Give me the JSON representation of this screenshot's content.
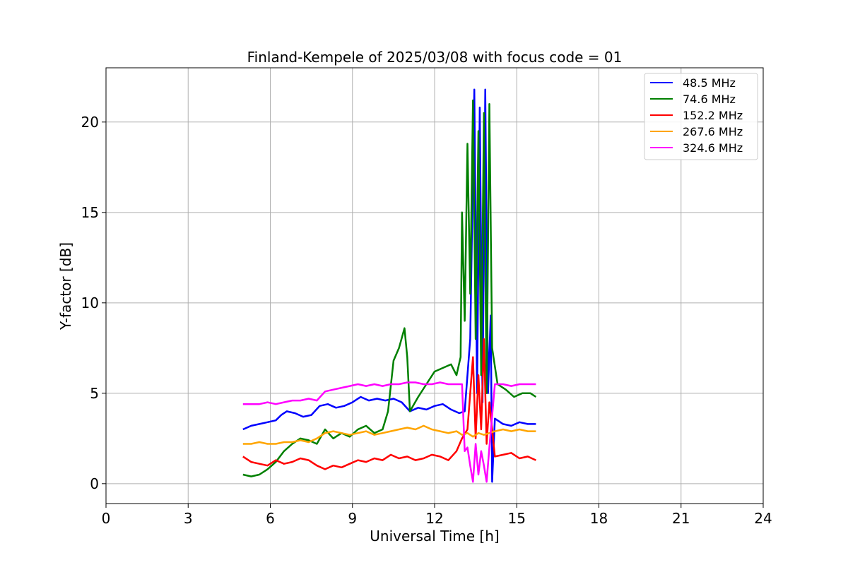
{
  "chart_data": {
    "type": "line",
    "title": "Finland-Kempele of 2025/03/08 with focus code = 01",
    "xlabel": "Universal Time [h]",
    "ylabel": "Y-factor [dB]",
    "xlim": [
      0,
      24
    ],
    "ylim": [
      -1.1,
      23
    ],
    "xticks": [
      0,
      3,
      6,
      9,
      12,
      15,
      18,
      21,
      24
    ],
    "yticks": [
      0,
      5,
      10,
      15,
      20
    ],
    "grid": true,
    "legend_position": "top-right",
    "series": [
      {
        "name": " 48.5 MHz",
        "color": "#0000ff",
        "x": [
          5.0,
          5.3,
          5.6,
          5.9,
          6.2,
          6.4,
          6.6,
          6.9,
          7.2,
          7.5,
          7.8,
          8.1,
          8.4,
          8.7,
          9.0,
          9.3,
          9.6,
          9.9,
          10.2,
          10.5,
          10.8,
          11.1,
          11.4,
          11.7,
          12.0,
          12.3,
          12.6,
          12.9,
          13.1,
          13.3,
          13.45,
          13.55,
          13.65,
          13.75,
          13.85,
          13.95,
          14.05,
          14.1,
          14.2,
          14.5,
          14.8,
          15.1,
          15.4,
          15.7
        ],
        "y": [
          3.0,
          3.2,
          3.3,
          3.4,
          3.5,
          3.8,
          4.0,
          3.9,
          3.7,
          3.8,
          4.3,
          4.4,
          4.2,
          4.3,
          4.5,
          4.8,
          4.6,
          4.7,
          4.6,
          4.7,
          4.5,
          4.0,
          4.2,
          4.1,
          4.3,
          4.4,
          4.1,
          3.9,
          4.0,
          8.0,
          21.8,
          5.0,
          20.8,
          4.5,
          21.8,
          5.0,
          9.3,
          0.1,
          3.6,
          3.3,
          3.2,
          3.4,
          3.3,
          3.3
        ]
      },
      {
        "name": " 74.6 MHz",
        "color": "#008000",
        "x": [
          5.0,
          5.3,
          5.6,
          5.9,
          6.2,
          6.5,
          6.8,
          7.1,
          7.4,
          7.7,
          8.0,
          8.3,
          8.6,
          8.9,
          9.2,
          9.5,
          9.8,
          10.1,
          10.3,
          10.5,
          10.7,
          10.9,
          11.0,
          11.1,
          11.4,
          11.7,
          12.0,
          12.3,
          12.6,
          12.8,
          12.95,
          13.0,
          13.1,
          13.2,
          13.3,
          13.4,
          13.5,
          13.6,
          13.7,
          13.8,
          13.9,
          14.0,
          14.1,
          14.3,
          14.6,
          14.9,
          15.2,
          15.5,
          15.7
        ],
        "y": [
          0.5,
          0.4,
          0.5,
          0.8,
          1.2,
          1.8,
          2.2,
          2.5,
          2.4,
          2.2,
          3.0,
          2.5,
          2.8,
          2.6,
          3.0,
          3.2,
          2.8,
          3.0,
          4.0,
          6.8,
          7.5,
          8.6,
          7.0,
          4.0,
          4.8,
          5.5,
          6.2,
          6.4,
          6.6,
          6.0,
          7.0,
          15.0,
          9.0,
          18.8,
          10.5,
          21.2,
          8.0,
          19.5,
          6.0,
          20.5,
          5.0,
          21.0,
          7.5,
          5.5,
          5.2,
          4.8,
          5.0,
          5.0,
          4.8
        ]
      },
      {
        "name": " 152.2 MHz",
        "color": "#ff0000",
        "x": [
          5.0,
          5.3,
          5.6,
          5.9,
          6.2,
          6.5,
          6.8,
          7.1,
          7.4,
          7.7,
          8.0,
          8.3,
          8.6,
          8.9,
          9.2,
          9.5,
          9.8,
          10.1,
          10.4,
          10.7,
          11.0,
          11.3,
          11.6,
          11.9,
          12.2,
          12.5,
          12.8,
          13.0,
          13.2,
          13.4,
          13.5,
          13.6,
          13.7,
          13.8,
          13.9,
          14.0,
          14.2,
          14.5,
          14.8,
          15.1,
          15.4,
          15.7
        ],
        "y": [
          1.5,
          1.2,
          1.1,
          1.0,
          1.3,
          1.1,
          1.2,
          1.4,
          1.3,
          1.0,
          0.8,
          1.0,
          0.9,
          1.1,
          1.3,
          1.2,
          1.4,
          1.3,
          1.6,
          1.4,
          1.5,
          1.3,
          1.4,
          1.6,
          1.5,
          1.3,
          1.8,
          2.5,
          3.0,
          7.0,
          2.5,
          6.0,
          3.0,
          8.0,
          2.2,
          4.5,
          1.5,
          1.6,
          1.7,
          1.4,
          1.5,
          1.3
        ]
      },
      {
        "name": " 267.6 MHz",
        "color": "#ffa500",
        "x": [
          5.0,
          5.3,
          5.6,
          5.9,
          6.2,
          6.5,
          6.8,
          7.1,
          7.4,
          7.7,
          8.0,
          8.3,
          8.6,
          8.9,
          9.2,
          9.5,
          9.8,
          10.1,
          10.4,
          10.7,
          11.0,
          11.3,
          11.6,
          11.9,
          12.2,
          12.5,
          12.8,
          13.0,
          13.2,
          13.4,
          13.6,
          13.8,
          14.0,
          14.2,
          14.5,
          14.8,
          15.1,
          15.4,
          15.7
        ],
        "y": [
          2.2,
          2.2,
          2.3,
          2.2,
          2.2,
          2.3,
          2.3,
          2.4,
          2.3,
          2.5,
          2.8,
          2.9,
          2.8,
          2.7,
          2.8,
          2.9,
          2.7,
          2.8,
          2.9,
          3.0,
          3.1,
          3.0,
          3.2,
          3.0,
          2.9,
          2.8,
          2.9,
          2.7,
          2.8,
          2.6,
          2.8,
          2.7,
          2.8,
          2.9,
          3.0,
          2.9,
          3.0,
          2.9,
          2.9
        ]
      },
      {
        "name": " 324.6 MHz",
        "color": "#ff00ff",
        "x": [
          5.0,
          5.3,
          5.6,
          5.9,
          6.2,
          6.5,
          6.8,
          7.1,
          7.4,
          7.7,
          8.0,
          8.3,
          8.6,
          8.9,
          9.2,
          9.5,
          9.8,
          10.1,
          10.4,
          10.7,
          11.0,
          11.3,
          11.6,
          11.9,
          12.2,
          12.5,
          12.8,
          13.0,
          13.1,
          13.2,
          13.3,
          13.4,
          13.5,
          13.6,
          13.7,
          13.8,
          13.9,
          14.0,
          14.2,
          14.5,
          14.8,
          15.1,
          15.4,
          15.7
        ],
        "y": [
          4.4,
          4.4,
          4.4,
          4.5,
          4.4,
          4.5,
          4.6,
          4.6,
          4.7,
          4.6,
          5.1,
          5.2,
          5.3,
          5.4,
          5.5,
          5.4,
          5.5,
          5.4,
          5.5,
          5.5,
          5.6,
          5.6,
          5.5,
          5.5,
          5.6,
          5.5,
          5.5,
          5.5,
          1.8,
          2.0,
          1.0,
          0.1,
          2.2,
          0.5,
          1.8,
          1.0,
          0.1,
          2.0,
          5.5,
          5.5,
          5.4,
          5.5,
          5.5,
          5.5
        ]
      }
    ]
  }
}
